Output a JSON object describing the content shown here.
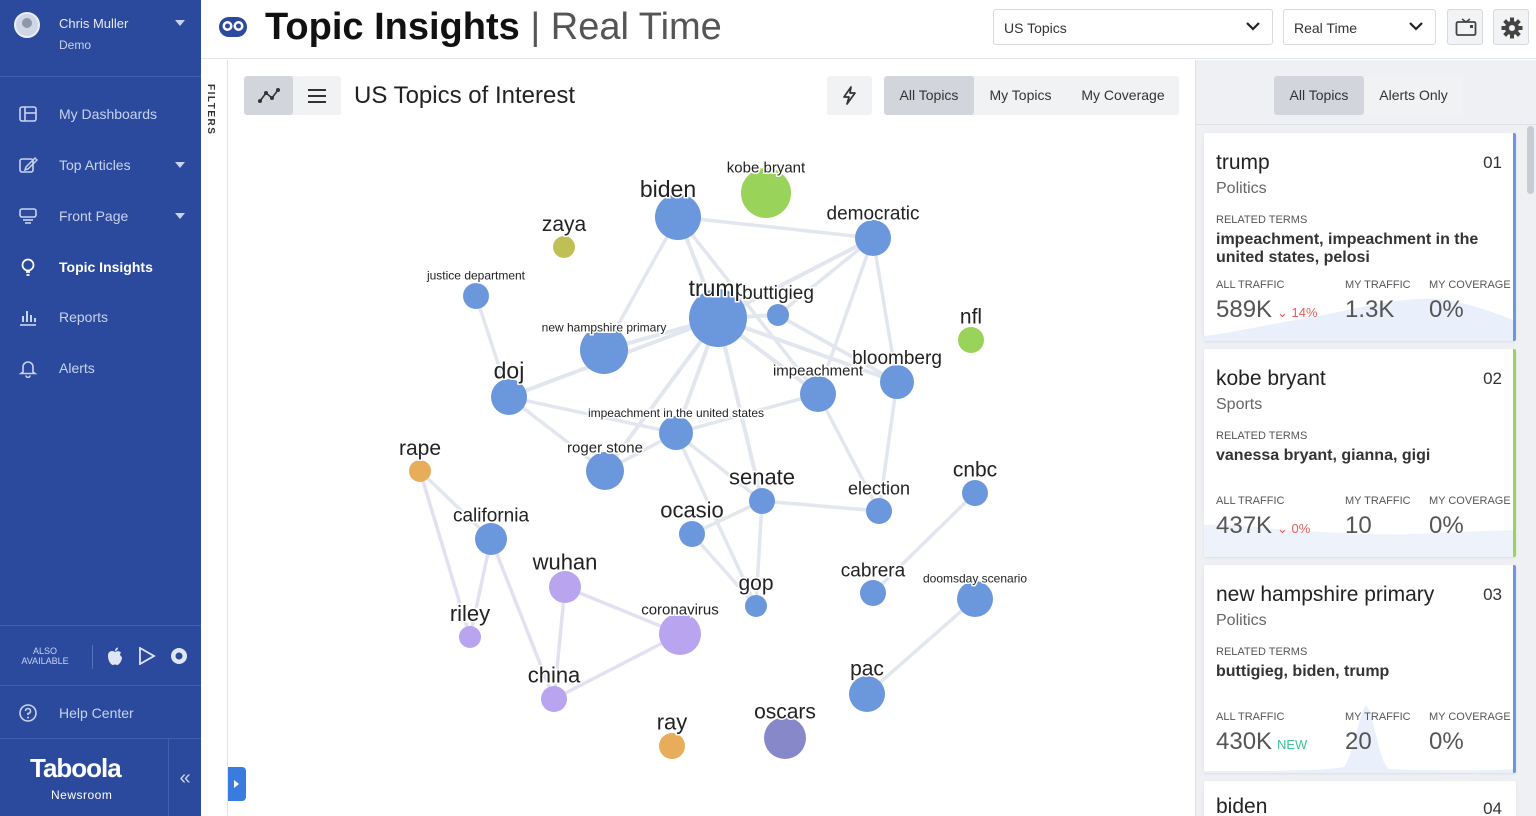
{
  "user": {
    "name": "Chris Muller",
    "subtitle": "Demo"
  },
  "sidebar": {
    "items": [
      {
        "label": "My Dashboards",
        "icon": "dashboard-icon"
      },
      {
        "label": "Top Articles",
        "icon": "edit-icon"
      },
      {
        "label": "Front Page",
        "icon": "front-page-icon"
      },
      {
        "label": "Topic Insights",
        "icon": "lightbulb-icon"
      },
      {
        "label": "Reports",
        "icon": "bar-chart-icon"
      },
      {
        "label": "Alerts",
        "icon": "bell-icon"
      }
    ],
    "also_available": "ALSO AVAILABLE",
    "help": "Help Center",
    "brand": "Taboola",
    "brand_sub": "Newsroom"
  },
  "header": {
    "title": "Topic Insights",
    "separator": "|",
    "subtitle": "Real Time",
    "region_select": "US Topics",
    "time_select": "Real Time"
  },
  "filters_label": "FILTERS",
  "main": {
    "title": "US Topics of Interest",
    "tabs": [
      "All Topics",
      "My Topics",
      "My Coverage"
    ]
  },
  "colors": {
    "sidebar": "#2b4a9e",
    "politics": "#6b97dc",
    "sports": "#9ad35a",
    "health": "#b9a4f0",
    "crime": "#e8ad5a",
    "entertainment": "#8688c9",
    "alert_down": "#e0605a",
    "new": "#3fc49a"
  },
  "graph": {
    "nodes": [
      {
        "id": "trump",
        "label": "trump",
        "size": "xl",
        "group": "politics"
      },
      {
        "id": "biden",
        "label": "biden",
        "size": "l",
        "group": "politics"
      },
      {
        "id": "kobe",
        "label": "kobe bryant",
        "size": "m",
        "group": "sports"
      },
      {
        "id": "democratic",
        "label": "democratic",
        "size": "l",
        "group": "politics"
      },
      {
        "id": "zaya",
        "label": "zaya",
        "size": "l",
        "group": "other"
      },
      {
        "id": "justice",
        "label": "justice department",
        "size": "s",
        "group": "politics"
      },
      {
        "id": "buttigieg",
        "label": "buttigieg",
        "size": "l",
        "group": "politics"
      },
      {
        "id": "nfl",
        "label": "nfl",
        "size": "l",
        "group": "sports"
      },
      {
        "id": "nhp",
        "label": "new hampshire primary",
        "size": "s",
        "group": "politics"
      },
      {
        "id": "doj",
        "label": "doj",
        "size": "l",
        "group": "politics"
      },
      {
        "id": "impeachment",
        "label": "impeachment",
        "size": "m",
        "group": "politics"
      },
      {
        "id": "bloomberg",
        "label": "bloomberg",
        "size": "l",
        "group": "politics"
      },
      {
        "id": "iitus",
        "label": "impeachment in the united states",
        "size": "s",
        "group": "politics"
      },
      {
        "id": "rape",
        "label": "rape",
        "size": "l",
        "group": "crime"
      },
      {
        "id": "rogerstone",
        "label": "roger stone",
        "size": "m",
        "group": "politics"
      },
      {
        "id": "senate",
        "label": "senate",
        "size": "l",
        "group": "politics"
      },
      {
        "id": "election",
        "label": "election",
        "size": "m",
        "group": "politics"
      },
      {
        "id": "cnbc",
        "label": "cnbc",
        "size": "l",
        "group": "politics"
      },
      {
        "id": "california",
        "label": "california",
        "size": "m",
        "group": "politics"
      },
      {
        "id": "ocasio",
        "label": "ocasio",
        "size": "l",
        "group": "politics"
      },
      {
        "id": "wuhan",
        "label": "wuhan",
        "size": "l",
        "group": "health"
      },
      {
        "id": "cabrera",
        "label": "cabrera",
        "size": "m",
        "group": "politics"
      },
      {
        "id": "doomsday",
        "label": "doomsday scenario",
        "size": "s",
        "group": "politics"
      },
      {
        "id": "gop",
        "label": "gop",
        "size": "l",
        "group": "politics"
      },
      {
        "id": "riley",
        "label": "riley",
        "size": "l",
        "group": "health"
      },
      {
        "id": "coronavirus",
        "label": "coronavirus",
        "size": "m",
        "group": "health"
      },
      {
        "id": "china",
        "label": "china",
        "size": "l",
        "group": "health"
      },
      {
        "id": "pac",
        "label": "pac",
        "size": "l",
        "group": "politics"
      },
      {
        "id": "ray",
        "label": "ray",
        "size": "l",
        "group": "crime"
      },
      {
        "id": "oscars",
        "label": "oscars",
        "size": "l",
        "group": "entertainment"
      }
    ],
    "edges": [
      [
        "trump",
        "biden"
      ],
      [
        "trump",
        "buttigieg"
      ],
      [
        "trump",
        "democratic"
      ],
      [
        "trump",
        "nhp"
      ],
      [
        "trump",
        "impeachment"
      ],
      [
        "trump",
        "bloomberg"
      ],
      [
        "trump",
        "iitus"
      ],
      [
        "trump",
        "doj"
      ],
      [
        "trump",
        "senate"
      ],
      [
        "trump",
        "rogerstone"
      ],
      [
        "biden",
        "democratic"
      ],
      [
        "biden",
        "nhp"
      ],
      [
        "biden",
        "impeachment"
      ],
      [
        "buttigieg",
        "democratic"
      ],
      [
        "buttigieg",
        "bloomberg"
      ],
      [
        "democratic",
        "bloomberg"
      ],
      [
        "democratic",
        "impeachment"
      ],
      [
        "justice",
        "doj"
      ],
      [
        "doj",
        "iitus"
      ],
      [
        "doj",
        "rogerstone"
      ],
      [
        "impeachment",
        "iitus"
      ],
      [
        "impeachment",
        "election"
      ],
      [
        "iitus",
        "senate"
      ],
      [
        "iitus",
        "rogerstone"
      ],
      [
        "bloomberg",
        "election"
      ],
      [
        "senate",
        "election"
      ],
      [
        "senate",
        "gop"
      ],
      [
        "senate",
        "ocasio"
      ],
      [
        "rape",
        "california"
      ],
      [
        "rape",
        "riley"
      ],
      [
        "california",
        "riley"
      ],
      [
        "california",
        "china"
      ],
      [
        "wuhan",
        "china"
      ],
      [
        "wuhan",
        "coronavirus"
      ],
      [
        "coronavirus",
        "china"
      ],
      [
        "cnbc",
        "cabrera"
      ],
      [
        "doomsday",
        "pac"
      ],
      [
        "ocasio",
        "gop"
      ],
      [
        "iitus",
        "gop"
      ],
      [
        "buttigieg",
        "bloomberg"
      ]
    ]
  },
  "alerts_panel": {
    "tabs": [
      "All Topics",
      "Alerts Only"
    ],
    "cards": [
      {
        "name": "trump",
        "rank": "01",
        "category": "Politics",
        "related_label": "RELATED TERMS",
        "related": "impeachment, impeachment in the united states, pelosi",
        "all_traffic_label": "ALL TRAFFIC",
        "all_traffic": "589K",
        "delta": "⌄ 14%",
        "my_traffic_label": "MY TRAFFIC",
        "my_traffic": "1.3K",
        "my_coverage_label": "MY COVERAGE",
        "my_coverage": "0%",
        "accent": "#6b97dc"
      },
      {
        "name": "kobe bryant",
        "rank": "02",
        "category": "Sports",
        "related_label": "RELATED TERMS",
        "related": "vanessa bryant, gianna, gigi",
        "all_traffic_label": "ALL TRAFFIC",
        "all_traffic": "437K",
        "delta": "⌄ 0%",
        "my_traffic_label": "MY TRAFFIC",
        "my_traffic": "10",
        "my_coverage_label": "MY COVERAGE",
        "my_coverage": "0%",
        "accent": "#9ad35a"
      },
      {
        "name": "new hampshire primary",
        "rank": "03",
        "category": "Politics",
        "related_label": "RELATED TERMS",
        "related": "buttigieg, biden, trump",
        "all_traffic_label": "ALL TRAFFIC",
        "all_traffic": "430K",
        "delta": "NEW",
        "my_traffic_label": "MY TRAFFIC",
        "my_traffic": "20",
        "my_coverage_label": "MY COVERAGE",
        "my_coverage": "0%",
        "accent": "#6b97dc"
      },
      {
        "name": "biden",
        "rank": "04"
      }
    ]
  }
}
